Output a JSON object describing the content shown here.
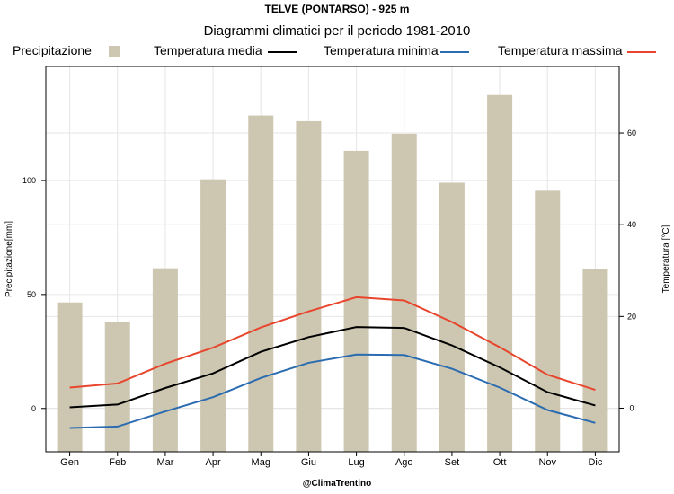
{
  "chart_data": {
    "type": "bar+line",
    "title": "TELVE (PONTARSO) - 925 m",
    "subtitle": "Diagrammi climatici per il periodo 1981-2010",
    "footer": "@ClimaTrentino",
    "categories": [
      "Gen",
      "Feb",
      "Mar",
      "Apr",
      "Mag",
      "Giu",
      "Lug",
      "Ago",
      "Set",
      "Ott",
      "Nov",
      "Dic"
    ],
    "ylabel_left": "Precipitazione[mm]",
    "ylabel_right": "Temperatura [°C]",
    "ylim_left": [
      -19,
      150
    ],
    "yticks_left": [
      0,
      50,
      100
    ],
    "ylim_right": [
      -9.5,
      74.5
    ],
    "yticks_right": [
      0,
      20,
      40,
      60
    ],
    "grid": true,
    "legend_position": "top",
    "legend": [
      {
        "label": "Precipitazione",
        "kind": "box",
        "color": "#cdc7b2"
      },
      {
        "label": "Temperatura media",
        "kind": "line",
        "color": "#000000"
      },
      {
        "label": "Temperatura minima",
        "kind": "line",
        "color": "#2b6cb0"
      },
      {
        "label": "Temperatura massima",
        "kind": "line",
        "color": "#e8452c"
      }
    ],
    "bars": {
      "name": "Precipitazione",
      "axis": "left",
      "color": "#cdc7b2",
      "values": [
        46.5,
        38,
        61.5,
        100.5,
        128.5,
        126,
        113,
        120.5,
        99,
        137.5,
        95.5,
        61
      ]
    },
    "series": [
      {
        "name": "Temperatura media",
        "axis": "right",
        "color": "#000000",
        "values": [
          0.2,
          0.8,
          4.4,
          7.6,
          12.3,
          15.5,
          17.7,
          17.5,
          13.7,
          8.9,
          3.5,
          0.6
        ]
      },
      {
        "name": "Temperatura minima",
        "axis": "right",
        "color": "#2b6cb0",
        "values": [
          -4.3,
          -4.0,
          -0.7,
          2.4,
          6.6,
          9.9,
          11.7,
          11.6,
          8.6,
          4.5,
          -0.4,
          -3.2
        ]
      },
      {
        "name": "Temperatura massima",
        "axis": "right",
        "color": "#e8452c",
        "values": [
          4.5,
          5.4,
          9.7,
          13.2,
          17.6,
          21.1,
          24.2,
          23.5,
          18.8,
          13.3,
          7.3,
          4.0
        ]
      }
    ]
  }
}
